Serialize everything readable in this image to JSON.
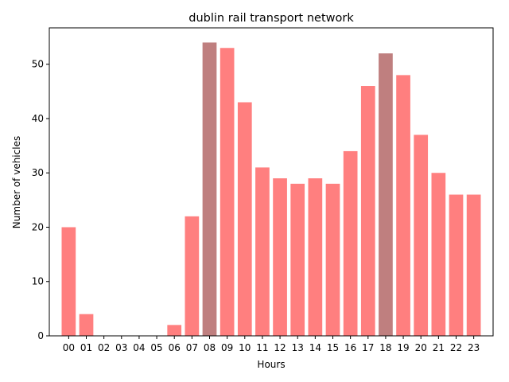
{
  "chart_data": {
    "type": "bar",
    "title": "dublin rail transport network",
    "xlabel": "Hours",
    "ylabel": "Number of vehicles",
    "categories": [
      "00",
      "01",
      "02",
      "03",
      "04",
      "05",
      "06",
      "07",
      "08",
      "09",
      "10",
      "11",
      "12",
      "13",
      "14",
      "15",
      "16",
      "17",
      "18",
      "19",
      "20",
      "21",
      "22",
      "23"
    ],
    "values": [
      20,
      4,
      0,
      0,
      0,
      0,
      2,
      22,
      54,
      53,
      43,
      31,
      29,
      28,
      29,
      28,
      34,
      46,
      52,
      48,
      37,
      30,
      26,
      26
    ],
    "highlighted_categories": [
      "08",
      "18"
    ],
    "ylim": [
      0,
      56.7
    ],
    "yticks": [
      0,
      10,
      20,
      30,
      40,
      50
    ],
    "grid": false,
    "colors": {
      "bar": "#ff7f7f",
      "bar_highlight": "#bf7f7f",
      "axis": "#000000"
    }
  }
}
